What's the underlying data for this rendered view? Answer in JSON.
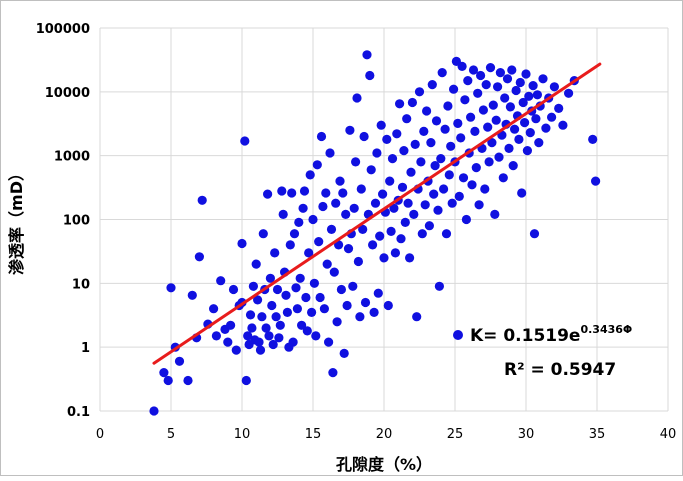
{
  "chart_data": {
    "type": "scatter",
    "title": "",
    "xlabel": "孔隙度（%）",
    "ylabel": "渗透率（mD）",
    "xlim": [
      0,
      40
    ],
    "ylim": [
      0.1,
      100000
    ],
    "y_scale": "log",
    "x_ticks": [
      "0",
      "5",
      "10",
      "15",
      "20",
      "25",
      "30",
      "35",
      "40"
    ],
    "y_ticks": [
      "0.1",
      "1",
      "10",
      "100",
      "1000",
      "10000",
      "100000"
    ],
    "grid": true,
    "colors": {
      "points": "#1010e0",
      "trend": "#e81c1c",
      "grid": "#d9d9d9"
    },
    "legend_marker": "circle",
    "trend_equation": {
      "text": "K= 0.1519e",
      "exponent": "0.3436Φ",
      "r2_text": "R² = 0.5947",
      "a": 0.1519,
      "b": 0.3436,
      "x_range": [
        3.8,
        35.2
      ]
    },
    "series": [
      {
        "points": [
          [
            3.8,
            0.1
          ],
          [
            4.5,
            0.4
          ],
          [
            4.8,
            0.3
          ],
          [
            5.0,
            8.5
          ],
          [
            5.3,
            1.0
          ],
          [
            5.6,
            0.6
          ],
          [
            6.2,
            0.3
          ],
          [
            6.5,
            6.5
          ],
          [
            6.8,
            1.4
          ],
          [
            7.0,
            26
          ],
          [
            7.2,
            200
          ],
          [
            7.6,
            2.3
          ],
          [
            8.0,
            4.0
          ],
          [
            8.2,
            1.5
          ],
          [
            8.5,
            11
          ],
          [
            8.8,
            1.9
          ],
          [
            9.0,
            1.2
          ],
          [
            9.2,
            2.2
          ],
          [
            9.4,
            8.0
          ],
          [
            9.6,
            0.9
          ],
          [
            9.8,
            4.5
          ],
          [
            10.0,
            42
          ],
          [
            10.0,
            5.0
          ],
          [
            10.2,
            1700
          ],
          [
            10.3,
            0.3
          ],
          [
            10.4,
            1.5
          ],
          [
            10.5,
            1.1
          ],
          [
            10.6,
            3.2
          ],
          [
            10.7,
            2.0
          ],
          [
            10.8,
            9.0
          ],
          [
            10.9,
            1.3
          ],
          [
            11.0,
            20
          ],
          [
            11.1,
            5.5
          ],
          [
            11.2,
            1.2
          ],
          [
            11.3,
            0.9
          ],
          [
            11.4,
            3.0
          ],
          [
            11.5,
            60
          ],
          [
            11.6,
            8.0
          ],
          [
            11.7,
            2.0
          ],
          [
            11.8,
            250
          ],
          [
            11.9,
            1.5
          ],
          [
            12.0,
            12
          ],
          [
            12.1,
            4.5
          ],
          [
            12.2,
            1.1
          ],
          [
            12.3,
            30
          ],
          [
            12.4,
            3.0
          ],
          [
            12.5,
            8.0
          ],
          [
            12.6,
            1.4
          ],
          [
            12.7,
            2.2
          ],
          [
            12.8,
            280
          ],
          [
            12.9,
            120
          ],
          [
            13.0,
            15
          ],
          [
            13.1,
            6.5
          ],
          [
            13.2,
            3.5
          ],
          [
            13.3,
            1.0
          ],
          [
            13.4,
            40
          ],
          [
            13.5,
            260
          ],
          [
            13.6,
            1.2
          ],
          [
            13.7,
            60
          ],
          [
            13.8,
            8.5
          ],
          [
            13.9,
            4.0
          ],
          [
            14.0,
            90
          ],
          [
            14.1,
            12
          ],
          [
            14.2,
            2.2
          ],
          [
            14.3,
            150
          ],
          [
            14.4,
            280
          ],
          [
            14.5,
            6.0
          ],
          [
            14.6,
            1.8
          ],
          [
            14.7,
            30
          ],
          [
            14.8,
            500
          ],
          [
            14.9,
            3.5
          ],
          [
            15.0,
            100
          ],
          [
            15.1,
            10
          ],
          [
            15.2,
            1.5
          ],
          [
            15.3,
            720
          ],
          [
            15.4,
            45
          ],
          [
            15.5,
            6.0
          ],
          [
            15.6,
            2000
          ],
          [
            15.7,
            160
          ],
          [
            15.8,
            4.0
          ],
          [
            15.9,
            260
          ],
          [
            16.0,
            20
          ],
          [
            16.1,
            1.2
          ],
          [
            16.2,
            1100
          ],
          [
            16.3,
            70
          ],
          [
            16.4,
            0.4
          ],
          [
            16.5,
            15
          ],
          [
            16.6,
            180
          ],
          [
            16.7,
            2.5
          ],
          [
            16.8,
            40
          ],
          [
            16.9,
            400
          ],
          [
            17.0,
            8.0
          ],
          [
            17.1,
            260
          ],
          [
            17.2,
            0.8
          ],
          [
            17.3,
            120
          ],
          [
            17.4,
            4.5
          ],
          [
            17.5,
            35
          ],
          [
            17.6,
            2500
          ],
          [
            17.7,
            60
          ],
          [
            17.8,
            9.0
          ],
          [
            17.9,
            150
          ],
          [
            18.0,
            800
          ],
          [
            18.1,
            8000
          ],
          [
            18.2,
            22
          ],
          [
            18.3,
            3.0
          ],
          [
            18.4,
            300
          ],
          [
            18.5,
            70
          ],
          [
            18.6,
            2000
          ],
          [
            18.7,
            5.0
          ],
          [
            18.8,
            38000
          ],
          [
            18.9,
            120
          ],
          [
            19.0,
            18000
          ],
          [
            19.1,
            600
          ],
          [
            19.2,
            40
          ],
          [
            19.3,
            3.5
          ],
          [
            19.4,
            180
          ],
          [
            19.5,
            1100
          ],
          [
            19.6,
            7.0
          ],
          [
            19.7,
            55
          ],
          [
            19.8,
            3000
          ],
          [
            19.9,
            250
          ],
          [
            20.0,
            25
          ],
          [
            20.1,
            130
          ],
          [
            20.2,
            1800
          ],
          [
            20.3,
            4.5
          ],
          [
            20.4,
            400
          ],
          [
            20.5,
            65
          ],
          [
            20.6,
            900
          ],
          [
            20.7,
            150
          ],
          [
            20.8,
            30
          ],
          [
            20.9,
            2200
          ],
          [
            21.0,
            200
          ],
          [
            21.1,
            6500
          ],
          [
            21.2,
            50
          ],
          [
            21.3,
            320
          ],
          [
            21.4,
            1200
          ],
          [
            21.5,
            90
          ],
          [
            21.6,
            3800
          ],
          [
            21.7,
            180
          ],
          [
            21.8,
            25
          ],
          [
            21.9,
            550
          ],
          [
            22.0,
            6800
          ],
          [
            22.1,
            120
          ],
          [
            22.2,
            1500
          ],
          [
            22.3,
            3.0
          ],
          [
            22.4,
            300
          ],
          [
            22.5,
            10000
          ],
          [
            22.6,
            800
          ],
          [
            22.7,
            60
          ],
          [
            22.8,
            2400
          ],
          [
            22.9,
            170
          ],
          [
            23.0,
            5000
          ],
          [
            23.1,
            400
          ],
          [
            23.2,
            80
          ],
          [
            23.3,
            1600
          ],
          [
            23.4,
            13000
          ],
          [
            23.5,
            250
          ],
          [
            23.6,
            700
          ],
          [
            23.7,
            3500
          ],
          [
            23.8,
            140
          ],
          [
            23.9,
            9.0
          ],
          [
            24.0,
            900
          ],
          [
            24.1,
            20000
          ],
          [
            24.2,
            300
          ],
          [
            24.3,
            2600
          ],
          [
            24.4,
            60
          ],
          [
            24.5,
            6000
          ],
          [
            24.6,
            500
          ],
          [
            24.7,
            1400
          ],
          [
            24.8,
            180
          ],
          [
            24.9,
            11000
          ],
          [
            25.0,
            800
          ],
          [
            25.1,
            30000
          ],
          [
            25.2,
            3200
          ],
          [
            25.3,
            230
          ],
          [
            25.4,
            1900
          ],
          [
            25.5,
            25000
          ],
          [
            25.6,
            450
          ],
          [
            25.7,
            7500
          ],
          [
            25.8,
            100
          ],
          [
            25.9,
            15000
          ],
          [
            26.0,
            1100
          ],
          [
            26.1,
            4000
          ],
          [
            26.2,
            350
          ],
          [
            26.3,
            22000
          ],
          [
            26.4,
            2400
          ],
          [
            26.5,
            650
          ],
          [
            26.6,
            9500
          ],
          [
            26.7,
            170
          ],
          [
            26.8,
            18000
          ],
          [
            26.9,
            1300
          ],
          [
            27.0,
            5200
          ],
          [
            27.1,
            300
          ],
          [
            27.2,
            13000
          ],
          [
            27.3,
            2800
          ],
          [
            27.4,
            800
          ],
          [
            27.5,
            24000
          ],
          [
            27.6,
            1600
          ],
          [
            27.7,
            6200
          ],
          [
            27.8,
            120
          ],
          [
            27.9,
            3600
          ],
          [
            28.0,
            12000
          ],
          [
            28.1,
            950
          ],
          [
            28.2,
            20000
          ],
          [
            28.3,
            2100
          ],
          [
            28.4,
            450
          ],
          [
            28.5,
            8000
          ],
          [
            28.6,
            3100
          ],
          [
            28.7,
            16000
          ],
          [
            28.8,
            1300
          ],
          [
            28.9,
            5800
          ],
          [
            29.0,
            22000
          ],
          [
            29.1,
            700
          ],
          [
            29.2,
            2600
          ],
          [
            29.3,
            10500
          ],
          [
            29.4,
            4200
          ],
          [
            29.5,
            1800
          ],
          [
            29.6,
            14000
          ],
          [
            29.7,
            260
          ],
          [
            29.8,
            6800
          ],
          [
            29.9,
            3300
          ],
          [
            30.0,
            19000
          ],
          [
            30.1,
            1200
          ],
          [
            30.2,
            8500
          ],
          [
            30.3,
            2300
          ],
          [
            30.4,
            5000
          ],
          [
            30.5,
            12500
          ],
          [
            30.6,
            60
          ],
          [
            30.7,
            3800
          ],
          [
            30.8,
            9000
          ],
          [
            30.9,
            1600
          ],
          [
            31.0,
            6000
          ],
          [
            31.2,
            16000
          ],
          [
            31.4,
            2700
          ],
          [
            31.6,
            8000
          ],
          [
            31.8,
            4000
          ],
          [
            32.0,
            12000
          ],
          [
            32.3,
            5500
          ],
          [
            32.6,
            3000
          ],
          [
            33.0,
            9500
          ],
          [
            33.4,
            15000
          ],
          [
            34.7,
            1800
          ],
          [
            34.9,
            400
          ]
        ]
      }
    ]
  }
}
